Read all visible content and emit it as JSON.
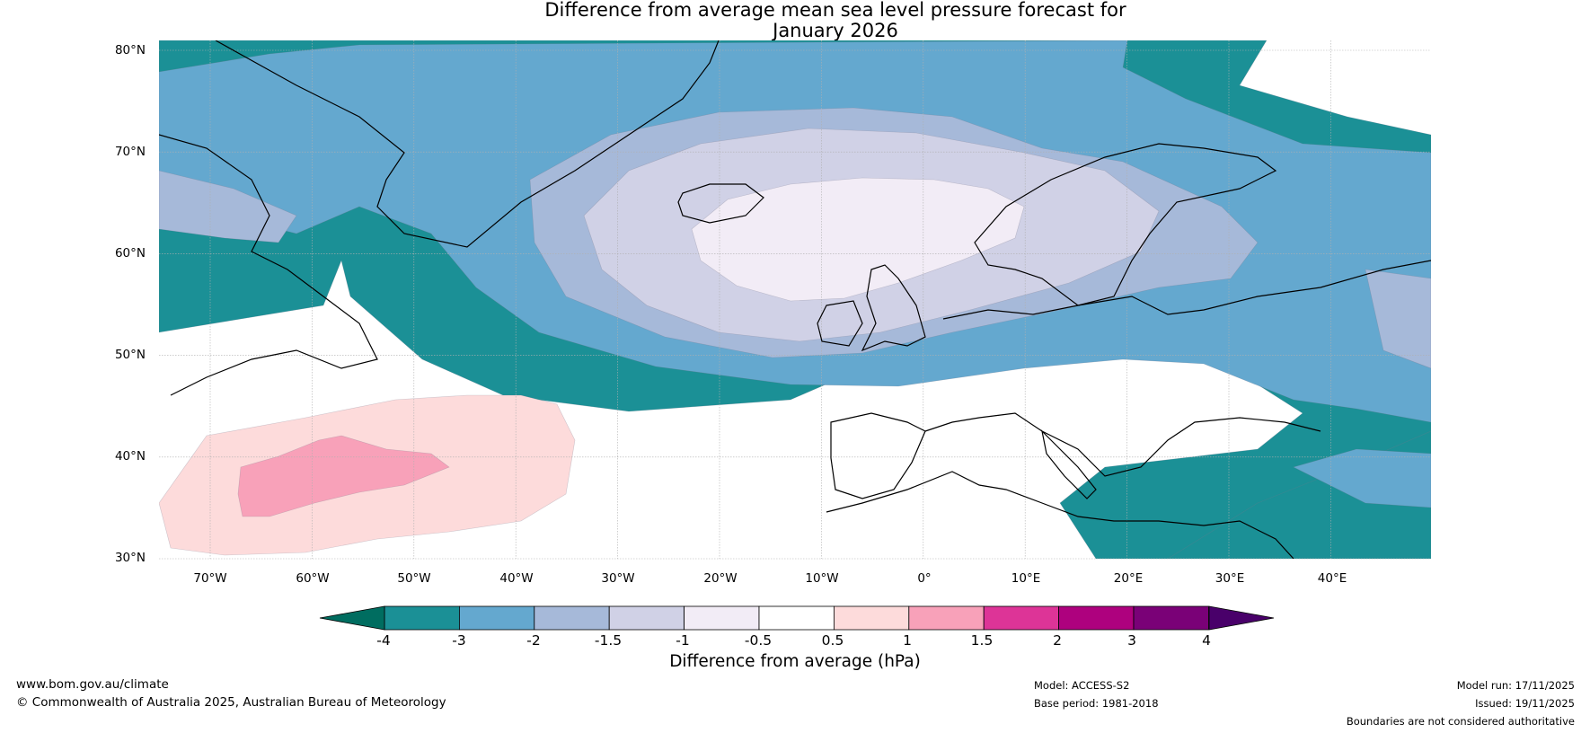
{
  "title": {
    "line1": "Difference from average mean sea level pressure forecast for",
    "line2": "January 2026"
  },
  "map": {
    "region": "North Atlantic and Europe",
    "latitude_labels": [
      "80°N",
      "70°N",
      "60°N",
      "50°N",
      "40°N",
      "30°N"
    ],
    "longitude_labels": [
      "70°W",
      "60°W",
      "50°W",
      "40°W",
      "30°W",
      "20°W",
      "10°W",
      "0°",
      "10°E",
      "20°E",
      "30°E",
      "40°E"
    ]
  },
  "colorbar": {
    "label": "Difference from average (hPa)",
    "tick_labels": [
      "-4",
      "-3",
      "-2",
      "-1.5",
      "-1",
      "-0.5",
      "0.5",
      "1",
      "1.5",
      "2",
      "3",
      "4"
    ],
    "colors": [
      "#1b9096",
      "#64a8cf",
      "#a6b9d9",
      "#d0d1e6",
      "#f2ecf6",
      "#ffffff",
      "#fddbdb",
      "#f8a1b9",
      "#dd3497",
      "#ae017e",
      "#7a0177"
    ],
    "under_color": "#006d60",
    "over_color": "#49006a"
  },
  "footer": {
    "website": "www.bom.gov.au/climate",
    "copyright": "© Commonwealth of Australia 2025, Australian Bureau of Meteorology",
    "model": "Model: ACCESS-S2",
    "base_period": "Base period: 1981-2018",
    "model_run": "Model run: 17/11/2025",
    "issued": "Issued: 19/11/2025",
    "disclaimer": "Boundaries are not considered authoritative"
  }
}
